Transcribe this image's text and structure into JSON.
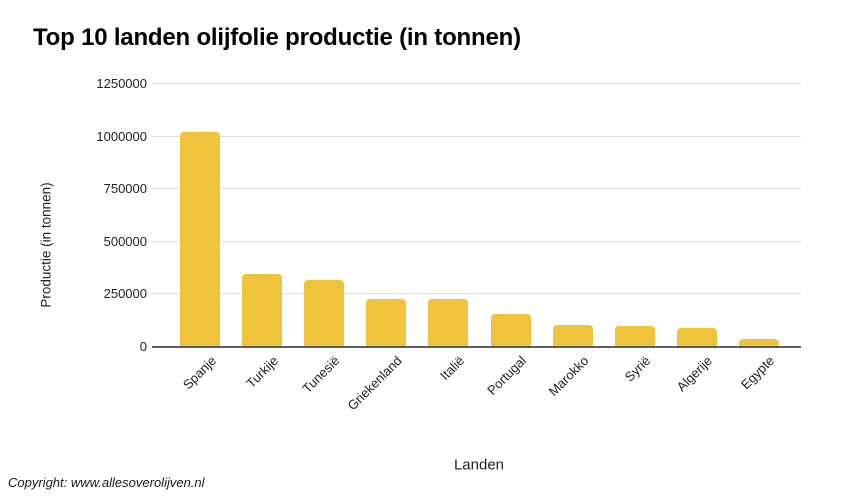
{
  "title": "Top 10 landen olijfolie productie (in tonnen)",
  "copyright": "Copyright: www.allesoverolijven.nl",
  "chart_data": {
    "type": "bar",
    "title": "Top 10 landen olijfolie productie (in tonnen)",
    "xlabel": "Landen",
    "ylabel": "Productie (in tonnen)",
    "categories": [
      "Spanje",
      "Turkije",
      "Tunesië",
      "Griekenland",
      "Italië",
      "Portugal",
      "Marokko",
      "Syrië",
      "Algerije",
      "Egypte"
    ],
    "values": [
      1015000,
      340000,
      315000,
      225000,
      222000,
      152000,
      98000,
      93000,
      85000,
      34000
    ],
    "ylim": [
      0,
      1250000
    ],
    "yticks": [
      0,
      250000,
      500000,
      750000,
      1000000,
      1250000
    ],
    "grid": true,
    "legend": "none",
    "colors": {
      "bar": "#F0C33C",
      "gridline": "#E0E0E0",
      "axis_line": "#5E5E5E",
      "tick_text": "#222222",
      "title_text": "#000000"
    }
  }
}
